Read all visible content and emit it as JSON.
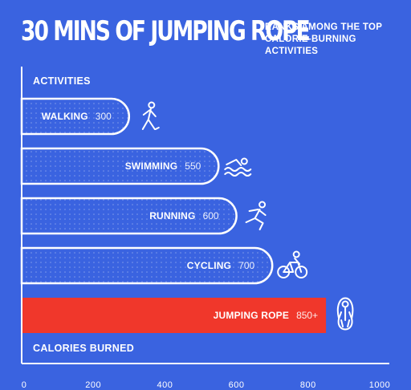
{
  "header": {
    "title": "30 MINS OF JUMPING ROPE",
    "subtitle_lines": [
      "RANKS AMONG THE TOP",
      "CALORIE-BURNING",
      "ACTIVITIES"
    ]
  },
  "colors": {
    "background": "#3a63e0",
    "bar_fill": "#3a63e0",
    "bar_outline": "#ffffff",
    "highlight": "#f0372b",
    "text": "#ffffff"
  },
  "chart_data": {
    "type": "bar",
    "orientation": "horizontal",
    "title": "30 MINS OF JUMPING ROPE",
    "ylabel": "ACTIVITIES",
    "xlabel": "CALORIES BURNED",
    "categories": [
      "WALKING",
      "SWIMMING",
      "RUNNING",
      "CYCLING",
      "JUMPING ROPE"
    ],
    "values": [
      300,
      550,
      600,
      700,
      850
    ],
    "value_labels": [
      "300",
      "550",
      "600",
      "700",
      "850+"
    ],
    "icons": [
      "walking-icon",
      "swimming-icon",
      "running-icon",
      "cycling-icon",
      "jump-rope-icon"
    ],
    "highlight_index": 4,
    "xlim": [
      0,
      1000
    ],
    "x_ticks": [
      0,
      200,
      400,
      600,
      800,
      1000
    ],
    "x_tick_labels": [
      "0",
      "200",
      "400",
      "600",
      "800",
      "1000"
    ],
    "grid": false
  }
}
